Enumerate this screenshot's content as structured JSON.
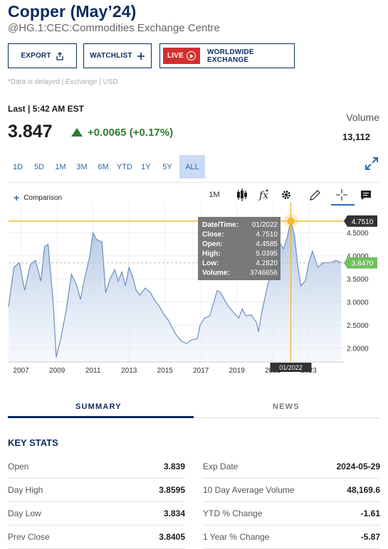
{
  "header": {
    "title": "Copper (May’24)",
    "subtitle": "@HG.1:CEC:Commodities Exchange Centre"
  },
  "actions": {
    "export_label": "EXPORT",
    "watchlist_label": "WATCHLIST",
    "live_label": "LIVE",
    "exchange_label": "WORLDWIDE EXCHANGE"
  },
  "delayed_note": "*Data is delayed | Exchange | USD",
  "quote": {
    "last_label": "Last | 5:42 AM EST",
    "price": "3.847",
    "change": "+0.0065 (+0.17%)",
    "direction": "up",
    "volume_label": "Volume",
    "volume_value": "13,112"
  },
  "ranges": [
    {
      "label": "1D"
    },
    {
      "label": "5D"
    },
    {
      "label": "1M"
    },
    {
      "label": "3M"
    },
    {
      "label": "6M"
    },
    {
      "label": "YTD"
    },
    {
      "label": "1Y"
    },
    {
      "label": "5Y"
    },
    {
      "label": "ALL",
      "active": true
    }
  ],
  "toolbar": {
    "comparison_label": "Comparison",
    "interval_label": "1M",
    "tool_icons": [
      "candlestick-icon",
      "function-icon",
      "gear-icon",
      "pencil-icon",
      "crosshair-icon",
      "chat-icon"
    ]
  },
  "colors": {
    "title": "#0b2c5f",
    "up": "#2e7d32",
    "line": "#6a8fbf",
    "crosshair": "#f5b72b",
    "current_badge": "#6fc05f",
    "live_badge": "#d32f2f"
  },
  "chart_data": {
    "type": "area",
    "xlim": [
      2006.3,
      2024.95
    ],
    "ylim": [
      1.7,
      5.15
    ],
    "x_ticks": [
      "2007",
      "2009",
      "2011",
      "2013",
      "2015",
      "2017",
      "2019",
      "2021",
      "2023"
    ],
    "y_ticks": [
      "2.0000",
      "2.5000",
      "3.0000",
      "3.5000",
      "4.0000",
      "4.5000"
    ],
    "series": [
      {
        "x": [
          2006.3,
          2006.6,
          2006.9,
          2007.2,
          2007.5,
          2007.8,
          2008.1,
          2008.3,
          2008.5,
          2008.8,
          2008.95,
          2009.2,
          2009.5,
          2009.8,
          2010.1,
          2010.3,
          2010.5,
          2010.8,
          2011.0,
          2011.2,
          2011.5,
          2011.7,
          2011.95,
          2012.2,
          2012.4,
          2012.6,
          2012.8,
          2013.0,
          2013.2,
          2013.4,
          2013.6,
          2013.9,
          2014.2,
          2014.4,
          2014.7,
          2014.9,
          2015.2,
          2015.4,
          2015.6,
          2015.9,
          2016.2,
          2016.5,
          2016.8,
          2016.95,
          2017.2,
          2017.5,
          2017.9,
          2018.1,
          2018.3,
          2018.5,
          2018.8,
          2019.1,
          2019.3,
          2019.5,
          2019.8,
          2020.1,
          2020.2,
          2020.4,
          2020.7,
          2020.9,
          2021.1,
          2021.35,
          2021.6,
          2021.8,
          2022.0,
          2022.2,
          2022.4,
          2022.55,
          2022.8,
          2023.0,
          2023.2,
          2023.5,
          2023.8,
          2024.0,
          2024.2,
          2024.5,
          2024.8
        ],
        "y": [
          2.9,
          3.75,
          3.85,
          3.25,
          3.8,
          3.9,
          3.45,
          4.2,
          4.25,
          2.9,
          1.8,
          2.2,
          2.8,
          3.6,
          3.35,
          3.05,
          3.45,
          3.95,
          4.5,
          4.35,
          4.3,
          3.2,
          3.5,
          3.7,
          3.45,
          3.65,
          3.35,
          3.75,
          3.55,
          3.25,
          3.15,
          3.3,
          3.2,
          3.05,
          2.9,
          2.75,
          2.6,
          2.45,
          2.3,
          2.15,
          2.1,
          2.18,
          2.2,
          2.5,
          2.65,
          2.7,
          3.25,
          3.2,
          3.05,
          2.92,
          2.78,
          2.65,
          2.85,
          2.7,
          2.72,
          2.55,
          2.35,
          2.8,
          3.35,
          3.6,
          3.9,
          4.3,
          4.15,
          4.4,
          4.751,
          4.45,
          3.75,
          3.35,
          3.45,
          3.85,
          4.1,
          3.75,
          3.85,
          3.85,
          3.85,
          3.9,
          3.847
        ]
      }
    ],
    "current_value": "3.8470",
    "crosshair": {
      "x": 2022.0,
      "y": 4.751,
      "x_label": "01/2022",
      "y_label": "4.7510"
    },
    "tooltip": [
      {
        "label": "Date/Time:",
        "value": "01/2022"
      },
      {
        "label": "Close:",
        "value": "4.7510"
      },
      {
        "label": "Open:",
        "value": "4.4585"
      },
      {
        "label": "High:",
        "value": "5.0395"
      },
      {
        "label": "Low:",
        "value": "4.2820"
      },
      {
        "label": "Volume:",
        "value": "3746656"
      }
    ]
  },
  "tabs": [
    {
      "label": "SUMMARY",
      "active": true
    },
    {
      "label": "NEWS"
    }
  ],
  "key_stats": {
    "heading": "KEY STATS",
    "left": [
      {
        "label": "Open",
        "value": "3.839"
      },
      {
        "label": "Day High",
        "value": "3.8595"
      },
      {
        "label": "Day Low",
        "value": "3.834"
      },
      {
        "label": "Prev Close",
        "value": "3.8405"
      }
    ],
    "right": [
      {
        "label": "Exp Date",
        "value": "2024-05-29"
      },
      {
        "label": "10 Day Average Volume",
        "value": "48,169.6"
      },
      {
        "label": "YTD % Change",
        "value": "-1.61"
      },
      {
        "label": "1 Year % Change",
        "value": "-5.87"
      }
    ]
  }
}
